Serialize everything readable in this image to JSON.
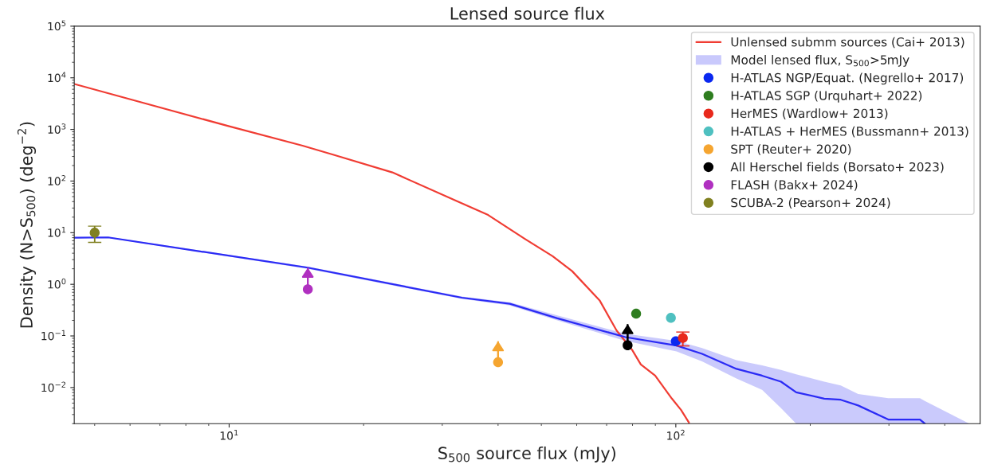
{
  "chart_data": {
    "type": "line",
    "title": "Lensed source flux",
    "xlabel": "S$_{500}$ source flux (mJy)",
    "ylabel": "Density (N>S$_{500}$) (deg$^{−2}$)",
    "log": "xy",
    "xlim": [
      4.5,
      480
    ],
    "ylim": [
      0.002,
      100000
    ],
    "xticks": [
      {
        "value": 10,
        "label": "10$^{1}$"
      },
      {
        "value": 100,
        "label": "10$^{2}$"
      }
    ],
    "yticks": [
      {
        "value": 0.01,
        "label": "10$^{−2}$"
      },
      {
        "value": 0.1,
        "label": "10$^{−1}$"
      },
      {
        "value": 1,
        "label": "10$^{0}$"
      },
      {
        "value": 10,
        "label": "10$^{1}$"
      },
      {
        "value": 100,
        "label": "10$^{2}$"
      },
      {
        "value": 1000,
        "label": "10$^{3}$"
      },
      {
        "value": 10000,
        "label": "10$^{4}$"
      },
      {
        "value": 100000,
        "label": "10$^{5}$"
      }
    ],
    "grid": false,
    "legend": "top right",
    "series": [
      {
        "name": "Unlensed submm sources (Cai+ 2013)",
        "color": "#f03c33",
        "x": [
          4.5,
          10,
          14.6,
          17.2,
          23.2,
          38,
          46,
          53,
          58.6,
          67.6,
          73.7,
          79.8,
          83.5,
          89.9,
          98,
          102.7,
          107
        ],
        "values": [
          7600,
          1150,
          484,
          319,
          147,
          22,
          7.5,
          3.5,
          1.8,
          0.48,
          0.127,
          0.054,
          0.028,
          0.017,
          0.0061,
          0.0037,
          0.0021
        ]
      },
      {
        "name": "Model lensed flux, S$_{500}$>5mJy",
        "color": "#2b2bf5",
        "x": [
          4.5,
          5.36,
          15,
          33.2,
          42.5,
          54.3,
          77.1,
          100.4,
          114.5,
          136.7,
          156,
          172,
          186,
          215,
          234,
          256,
          299,
          352,
          361,
          454
        ],
        "values": [
          8.0,
          8.1,
          2.1,
          0.55,
          0.42,
          0.22,
          0.095,
          0.065,
          0.045,
          0.023,
          0.017,
          0.013,
          0.0081,
          0.0061,
          0.0058,
          0.0045,
          0.0024,
          0.0024,
          0.002,
          null
        ],
        "lower": [
          7.8,
          7.9,
          2.0,
          0.52,
          0.39,
          0.2,
          0.08,
          0.05,
          0.032,
          0.015,
          0.009,
          0.004,
          0.002,
          0.002,
          0.002,
          0.002,
          0.002,
          0.002,
          0.002,
          0.002
        ],
        "upper": [
          8.2,
          8.3,
          2.2,
          0.58,
          0.45,
          0.25,
          0.11,
          0.08,
          0.058,
          0.034,
          0.027,
          0.022,
          0.018,
          0.013,
          0.011,
          0.0075,
          0.0062,
          0.0062,
          0.0055,
          0.002
        ]
      },
      {
        "type": "scatter",
        "name": "H-ATLAS NGP/Equat. (Negrello+ 2017)",
        "color": "#0a28f0",
        "marker": "circle",
        "x": [
          100
        ],
        "values": [
          0.079
        ]
      },
      {
        "type": "scatter",
        "name": "H-ATLAS SGP (Urquhart+ 2022)",
        "color": "#2e7d1f",
        "marker": "circle",
        "x": [
          81.5
        ],
        "values": [
          0.27
        ]
      },
      {
        "type": "scatter",
        "name": "HerMES (Wardlow+ 2013)",
        "color": "#e8291c",
        "marker": "circle",
        "x": [
          103.7
        ],
        "values": [
          0.091
        ],
        "errors": [
          [
            0.064,
            0.119
          ]
        ]
      },
      {
        "type": "scatter",
        "name": "H-ATLAS + HerMES (Bussmann+ 2013)",
        "color": "#4fc0c0",
        "marker": "circle",
        "x": [
          97.5
        ],
        "values": [
          0.224
        ]
      },
      {
        "type": "scatter",
        "name": "SPT (Reuter+ 2020)",
        "color": "#f5a530",
        "marker": "circle",
        "x": [
          40
        ],
        "values": [
          0.031
        ],
        "errors": [
          [
            0.031,
            0.079
          ]
        ]
      },
      {
        "type": "scatter",
        "name": "All Herschel fields (Borsato+ 2023)",
        "color": "#000000",
        "marker": "circle",
        "x": [
          78
        ],
        "values": [
          0.066
        ],
        "errors": [
          [
            0.066,
            0.17
          ]
        ]
      },
      {
        "type": "scatter",
        "name": "FLASH (Bakx+ 2024)",
        "color": "#b030c0",
        "marker": "circle",
        "x": [
          15
        ],
        "values": [
          0.8
        ],
        "errors": [
          [
            0.8,
            2.1
          ]
        ]
      },
      {
        "type": "scatter",
        "name": "SCUBA-2 (Pearson+ 2024)",
        "color": "#808020",
        "marker": "circle",
        "x": [
          5
        ],
        "values": [
          10
        ],
        "errors": [
          [
            6.5,
            13.4
          ]
        ]
      }
    ]
  }
}
